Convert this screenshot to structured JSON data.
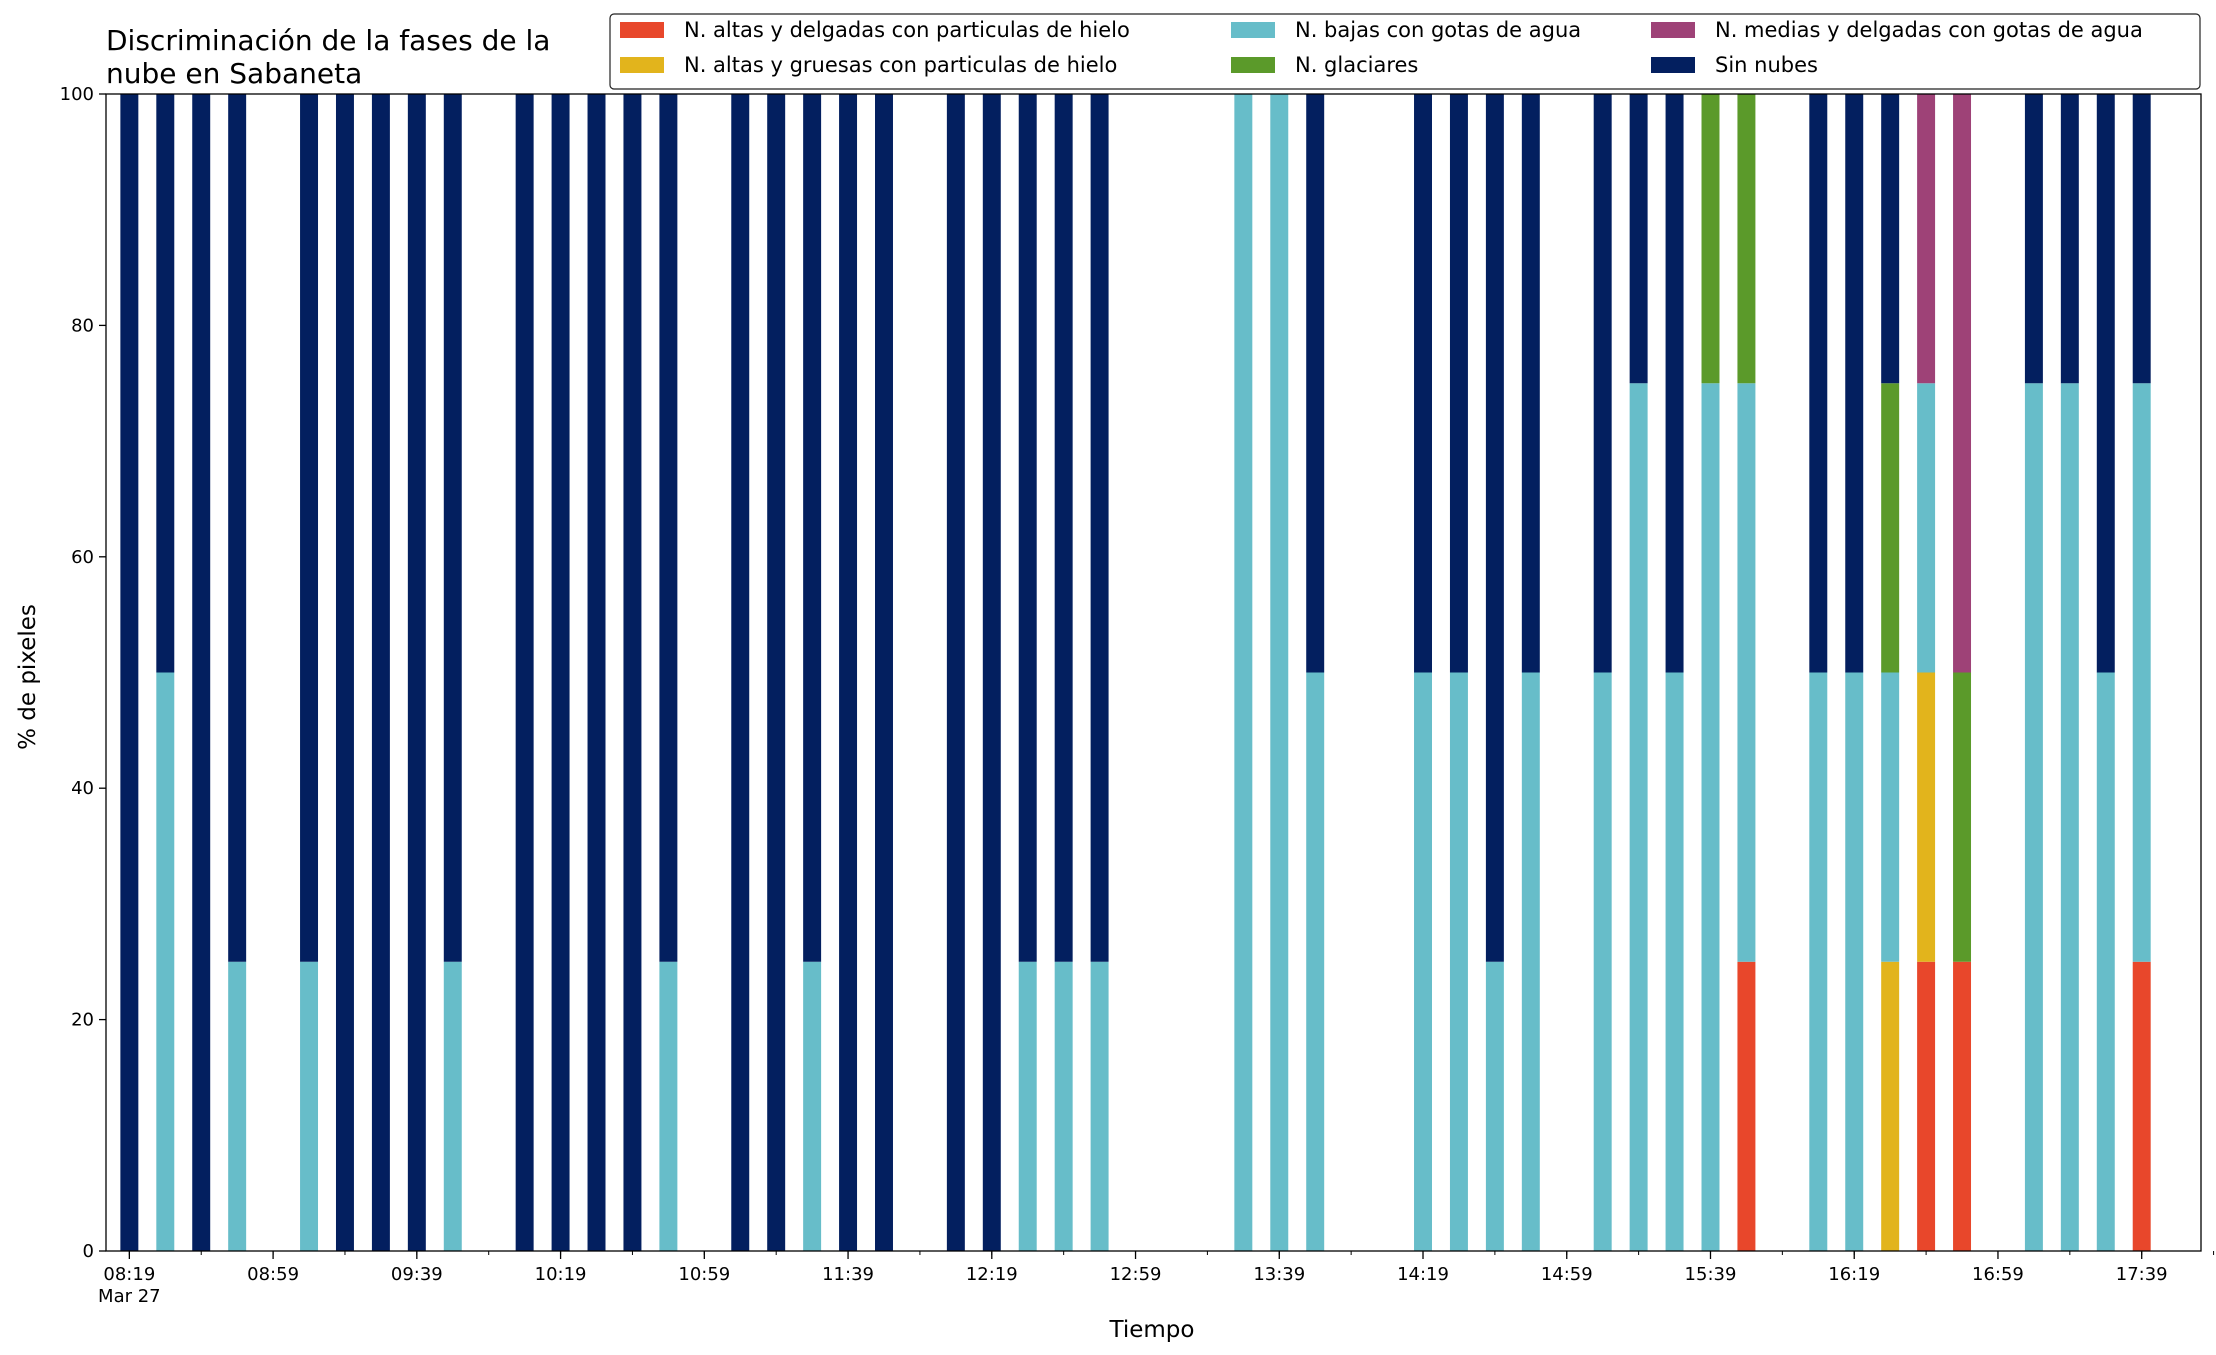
{
  "chart_data": {
    "type": "bar",
    "stacked": true,
    "title_lines": [
      "Discriminación de la fases de la",
      "nube en Sabaneta"
    ],
    "xlabel": "Tiempo",
    "ylabel": "% de pixeles",
    "ylim": [
      0,
      100
    ],
    "yticks": [
      0,
      20,
      40,
      60,
      80,
      100
    ],
    "grid": false,
    "legend_position": "top-right",
    "x_start": "08:19",
    "x_step_minutes": 10,
    "x_end": "17:59",
    "xtick_labels": [
      {
        "time": "08:19",
        "label": "08:19",
        "sub": "Mar 27"
      },
      {
        "time": "08:59",
        "label": "08:59",
        "sub": ""
      },
      {
        "time": "09:39",
        "label": "09:39",
        "sub": ""
      },
      {
        "time": "10:19",
        "label": "10:19",
        "sub": ""
      },
      {
        "time": "10:59",
        "label": "10:59",
        "sub": ""
      },
      {
        "time": "11:39",
        "label": "11:39",
        "sub": ""
      },
      {
        "time": "12:19",
        "label": "12:19",
        "sub": ""
      },
      {
        "time": "12:59",
        "label": "12:59",
        "sub": ""
      },
      {
        "time": "13:39",
        "label": "13:39",
        "sub": ""
      },
      {
        "time": "14:19",
        "label": "14:19",
        "sub": ""
      },
      {
        "time": "14:59",
        "label": "14:59",
        "sub": ""
      },
      {
        "time": "15:39",
        "label": "15:39",
        "sub": ""
      },
      {
        "time": "16:19",
        "label": "16:19",
        "sub": ""
      },
      {
        "time": "16:59",
        "label": "16:59",
        "sub": ""
      },
      {
        "time": "17:39",
        "label": "17:39",
        "sub": ""
      }
    ],
    "series": [
      {
        "name": "N. altas y delgadas con particulas de hielo",
        "color": "#e8472b"
      },
      {
        "name": "N. altas y gruesas con particulas de hielo",
        "color": "#e2b41c"
      },
      {
        "name": "N. bajas con gotas de agua",
        "color": "#67bdc9"
      },
      {
        "name": "N. glaciares",
        "color": "#5b9a2a"
      },
      {
        "name": "N. medias y delgadas con gotas de agua",
        "color": "#9e4277"
      },
      {
        "name": "Sin nubes",
        "color": "#031f5f"
      }
    ],
    "stack_order": [
      "N. altas y delgadas con particulas de hielo",
      "N. altas y gruesas con particulas de hielo",
      "N. bajas con gotas de agua",
      "N. glaciares",
      "N. medias y delgadas con gotas de agua",
      "Sin nubes"
    ],
    "bars": [
      {
        "time": "08:19",
        "values": {
          "Sin nubes": 100
        }
      },
      {
        "time": "08:29",
        "values": {
          "N. bajas con gotas de agua": 50,
          "Sin nubes": 50
        }
      },
      {
        "time": "08:39",
        "values": {
          "Sin nubes": 100
        }
      },
      {
        "time": "08:49",
        "values": {
          "N. bajas con gotas de agua": 25,
          "Sin nubes": 75
        }
      },
      {
        "time": "09:09",
        "values": {
          "N. bajas con gotas de agua": 25,
          "Sin nubes": 75
        }
      },
      {
        "time": "09:19",
        "values": {
          "Sin nubes": 100
        }
      },
      {
        "time": "09:29",
        "values": {
          "Sin nubes": 100
        }
      },
      {
        "time": "09:39",
        "values": {
          "Sin nubes": 100
        }
      },
      {
        "time": "09:49",
        "values": {
          "N. bajas con gotas de agua": 25,
          "Sin nubes": 75
        }
      },
      {
        "time": "10:09",
        "values": {
          "Sin nubes": 100
        }
      },
      {
        "time": "10:19",
        "values": {
          "Sin nubes": 100
        }
      },
      {
        "time": "10:29",
        "values": {
          "Sin nubes": 100
        }
      },
      {
        "time": "10:39",
        "values": {
          "Sin nubes": 100
        }
      },
      {
        "time": "10:49",
        "values": {
          "N. bajas con gotas de agua": 25,
          "Sin nubes": 75
        }
      },
      {
        "time": "11:09",
        "values": {
          "Sin nubes": 100
        }
      },
      {
        "time": "11:19",
        "values": {
          "Sin nubes": 100
        }
      },
      {
        "time": "11:29",
        "values": {
          "N. bajas con gotas de agua": 25,
          "Sin nubes": 75
        }
      },
      {
        "time": "11:39",
        "values": {
          "Sin nubes": 100
        }
      },
      {
        "time": "11:49",
        "values": {
          "Sin nubes": 100
        }
      },
      {
        "time": "12:09",
        "values": {
          "Sin nubes": 100
        }
      },
      {
        "time": "12:19",
        "values": {
          "Sin nubes": 100
        }
      },
      {
        "time": "12:29",
        "values": {
          "N. bajas con gotas de agua": 25,
          "Sin nubes": 75
        }
      },
      {
        "time": "12:39",
        "values": {
          "N. bajas con gotas de agua": 25,
          "Sin nubes": 75
        }
      },
      {
        "time": "12:49",
        "values": {
          "N. bajas con gotas de agua": 25,
          "Sin nubes": 75
        }
      },
      {
        "time": "13:29",
        "values": {
          "N. bajas con gotas de agua": 100
        }
      },
      {
        "time": "13:39",
        "values": {
          "N. bajas con gotas de agua": 100
        }
      },
      {
        "time": "13:49",
        "values": {
          "N. bajas con gotas de agua": 50,
          "Sin nubes": 50
        }
      },
      {
        "time": "14:19",
        "values": {
          "N. bajas con gotas de agua": 50,
          "Sin nubes": 50
        }
      },
      {
        "time": "14:29",
        "values": {
          "N. bajas con gotas de agua": 50,
          "Sin nubes": 50
        }
      },
      {
        "time": "14:39",
        "values": {
          "N. bajas con gotas de agua": 25,
          "Sin nubes": 75
        }
      },
      {
        "time": "14:49",
        "values": {
          "N. bajas con gotas de agua": 50,
          "Sin nubes": 50
        }
      },
      {
        "time": "15:09",
        "values": {
          "N. bajas con gotas de agua": 50,
          "Sin nubes": 50
        }
      },
      {
        "time": "15:19",
        "values": {
          "N. bajas con gotas de agua": 75,
          "Sin nubes": 25
        }
      },
      {
        "time": "15:29",
        "values": {
          "N. bajas con gotas de agua": 50,
          "Sin nubes": 50
        }
      },
      {
        "time": "15:39",
        "values": {
          "N. bajas con gotas de agua": 75,
          "N. glaciares": 25
        }
      },
      {
        "time": "15:49",
        "values": {
          "N. altas y delgadas con particulas de hielo": 25,
          "N. bajas con gotas de agua": 50,
          "N. glaciares": 25
        }
      },
      {
        "time": "16:09",
        "values": {
          "N. bajas con gotas de agua": 50,
          "Sin nubes": 50
        }
      },
      {
        "time": "16:19",
        "values": {
          "N. bajas con gotas de agua": 50,
          "Sin nubes": 50
        }
      },
      {
        "time": "16:29",
        "values": {
          "N. altas y gruesas con particulas de hielo": 25,
          "N. bajas con gotas de agua": 25,
          "N. glaciares": 25,
          "Sin nubes": 25
        }
      },
      {
        "time": "16:39",
        "values": {
          "N. altas y delgadas con particulas de hielo": 25,
          "N. altas y gruesas con particulas de hielo": 25,
          "N. bajas con gotas de agua": 25,
          "N. medias y delgadas con gotas de agua": 25
        }
      },
      {
        "time": "16:49",
        "values": {
          "N. altas y delgadas con particulas de hielo": 25,
          "N. glaciares": 25,
          "N. medias y delgadas con gotas de agua": 50
        }
      },
      {
        "time": "17:09",
        "values": {
          "N. bajas con gotas de agua": 75,
          "Sin nubes": 25
        }
      },
      {
        "time": "17:19",
        "values": {
          "N. bajas con gotas de agua": 75,
          "Sin nubes": 25
        }
      },
      {
        "time": "17:29",
        "values": {
          "N. bajas con gotas de agua": 50,
          "Sin nubes": 50
        }
      },
      {
        "time": "17:39",
        "values": {
          "N. altas y delgadas con particulas de hielo": 25,
          "N. bajas con gotas de agua": 50,
          "Sin nubes": 25
        }
      }
    ]
  }
}
